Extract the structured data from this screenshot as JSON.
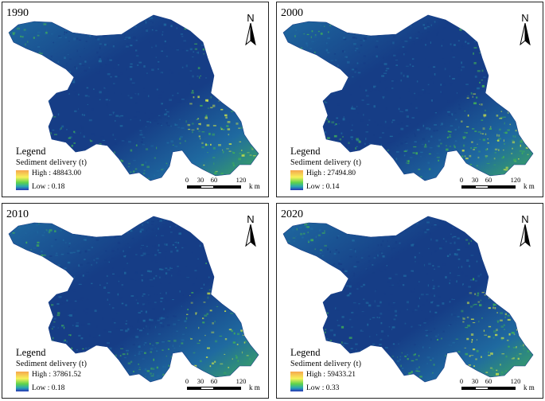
{
  "panels": [
    {
      "year": "1990",
      "north": "N",
      "legend_title": "Legend",
      "legend_subtitle": "Sediment delivery (t)",
      "high": "High : 48843.00",
      "low": "Low : 0.18",
      "scale_ticks": [
        "0",
        "30",
        "60",
        "120"
      ],
      "scale_unit": "k m"
    },
    {
      "year": "2000",
      "north": "N",
      "legend_title": "Legend",
      "legend_subtitle": "Sediment delivery (t)",
      "high": "High : 27494.80",
      "low": "Low : 0.14",
      "scale_ticks": [
        "0",
        "30",
        "60",
        "120"
      ],
      "scale_unit": "k m"
    },
    {
      "year": "2010",
      "north": "N",
      "legend_title": "Legend",
      "legend_subtitle": "Sediment delivery (t)",
      "high": "High : 37861.52",
      "low": "Low : 0.18",
      "scale_ticks": [
        "0",
        "30",
        "60",
        "120"
      ],
      "scale_unit": "k m"
    },
    {
      "year": "2020",
      "north": "N",
      "legend_title": "Legend",
      "legend_subtitle": "Sediment delivery (t)",
      "high": "High : 59433.21",
      "low": "Low : 0.33",
      "scale_ticks": [
        "0",
        "30",
        "60",
        "120"
      ],
      "scale_unit": "k m"
    }
  ],
  "colors": {
    "region_dark": "#163d86",
    "region_mid": "#1f6aa0",
    "region_green": "#3fae58",
    "region_yellow": "#c8df4a",
    "ramp_high": "#f5a64d",
    "ramp_low": "#2737b5"
  },
  "icons": [
    "north-arrow-icon"
  ]
}
